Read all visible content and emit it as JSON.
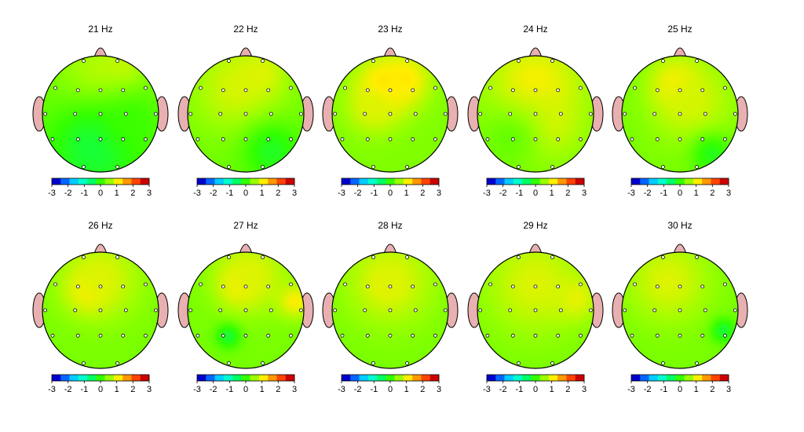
{
  "chart_data": {
    "type": "heatmap",
    "subtype": "topographic-scalp-map",
    "colorbar": {
      "min": -3,
      "max": 3,
      "ticks": [
        -3,
        -2,
        -1,
        0,
        1,
        2,
        3
      ],
      "tick_labels": [
        "-3",
        "-2",
        "-1",
        "0",
        "1",
        "2",
        "3"
      ],
      "colors": [
        "#0000cc",
        "#0066ff",
        "#00ccff",
        "#00ffcc",
        "#00ff66",
        "#33ff00",
        "#99ff00",
        "#ffee00",
        "#ff9900",
        "#ff4400",
        "#cc0000"
      ]
    },
    "electrodes": [
      "Fp1",
      "Fp2",
      "F7",
      "F3",
      "Fz",
      "F4",
      "F8",
      "T3",
      "C3",
      "Cz",
      "C4",
      "T4",
      "T5",
      "P3",
      "Pz",
      "P4",
      "T6",
      "O1",
      "O2"
    ],
    "panels": [
      {
        "title": "21 Hz",
        "base": 0.35,
        "blobs": [
          {
            "u": 0.0,
            "v": -0.6,
            "value": 0.85,
            "r": 0.5
          },
          {
            "u": 0.35,
            "v": -0.75,
            "value": 0.9,
            "r": 0.22
          },
          {
            "u": -0.1,
            "v": 0.6,
            "value": -0.35,
            "r": 0.6
          },
          {
            "u": 0.55,
            "v": 0.15,
            "value": 0.05,
            "r": 0.35
          }
        ]
      },
      {
        "title": "22 Hz",
        "base": 0.35,
        "blobs": [
          {
            "u": -0.15,
            "v": -0.45,
            "value": 0.95,
            "r": 0.55
          },
          {
            "u": 0.25,
            "v": -0.7,
            "value": 1.0,
            "r": 0.3
          },
          {
            "u": 0.45,
            "v": 0.65,
            "value": -0.2,
            "r": 0.35
          }
        ]
      },
      {
        "title": "23 Hz",
        "base": 0.45,
        "blobs": [
          {
            "u": -0.1,
            "v": -0.45,
            "value": 1.45,
            "r": 0.35
          },
          {
            "u": 0.25,
            "v": -0.6,
            "value": 1.25,
            "r": 0.3
          },
          {
            "u": -0.3,
            "v": -0.1,
            "value": 1.0,
            "r": 0.3
          }
        ]
      },
      {
        "title": "24 Hz",
        "base": 0.45,
        "blobs": [
          {
            "u": 0.0,
            "v": -0.5,
            "value": 1.2,
            "r": 0.55
          },
          {
            "u": 0.15,
            "v": 0.15,
            "value": 1.0,
            "r": 0.4
          },
          {
            "u": -0.45,
            "v": 0.45,
            "value": 0.3,
            "r": 0.4
          }
        ]
      },
      {
        "title": "25 Hz",
        "base": 0.4,
        "blobs": [
          {
            "u": -0.05,
            "v": -0.5,
            "value": 1.4,
            "r": 0.3
          },
          {
            "u": 0.2,
            "v": -0.2,
            "value": 0.95,
            "r": 0.5
          },
          {
            "u": 0.55,
            "v": 0.7,
            "value": -0.15,
            "r": 0.25
          }
        ]
      },
      {
        "title": "26 Hz",
        "base": 0.4,
        "blobs": [
          {
            "u": -0.2,
            "v": -0.35,
            "value": 1.4,
            "r": 0.25
          },
          {
            "u": 0.0,
            "v": -0.55,
            "value": 1.0,
            "r": 0.5
          }
        ]
      },
      {
        "title": "27 Hz",
        "base": 0.4,
        "blobs": [
          {
            "u": -0.1,
            "v": -0.45,
            "value": 1.35,
            "r": 0.25
          },
          {
            "u": 0.1,
            "v": -0.6,
            "value": 1.0,
            "r": 0.45
          },
          {
            "u": 0.85,
            "v": -0.15,
            "value": 1.2,
            "r": 0.2
          },
          {
            "u": -0.3,
            "v": 0.45,
            "value": -0.3,
            "r": 0.15
          }
        ]
      },
      {
        "title": "28 Hz",
        "base": 0.4,
        "blobs": [
          {
            "u": -0.05,
            "v": -0.45,
            "value": 1.4,
            "r": 0.2
          },
          {
            "u": 0.0,
            "v": -0.5,
            "value": 1.0,
            "r": 0.55
          }
        ]
      },
      {
        "title": "29 Hz",
        "base": 0.4,
        "blobs": [
          {
            "u": 0.0,
            "v": -0.45,
            "value": 1.0,
            "r": 0.6
          },
          {
            "u": 0.7,
            "v": -0.2,
            "value": 1.05,
            "r": 0.25
          }
        ]
      },
      {
        "title": "30 Hz",
        "base": 0.4,
        "blobs": [
          {
            "u": -0.2,
            "v": -0.5,
            "value": 1.0,
            "r": 0.5
          },
          {
            "u": 0.75,
            "v": 0.35,
            "value": -0.3,
            "r": 0.15
          }
        ]
      }
    ]
  },
  "colors": {
    "ear_fill": "#e8b0b0",
    "nose_fill": "#e8b0b0",
    "outline": "#000000",
    "electrode_fill": "#ffffff",
    "electrode_stroke": "#000000"
  }
}
